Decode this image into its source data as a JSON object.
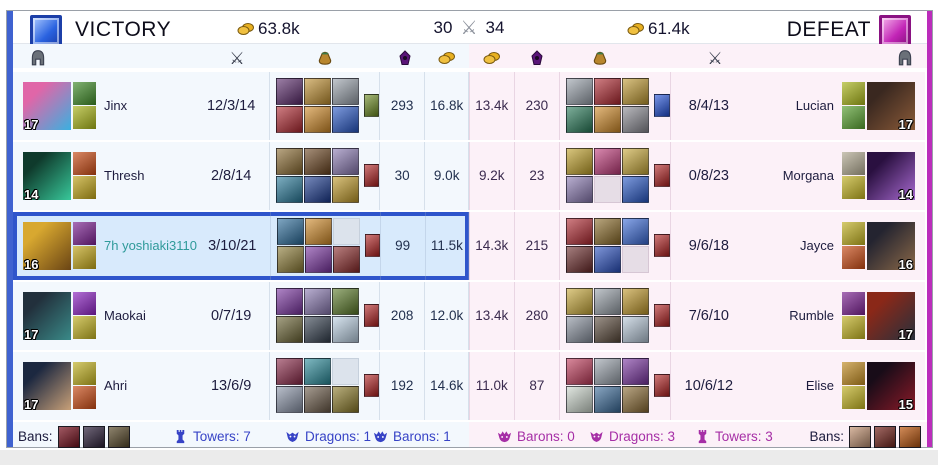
{
  "header": {
    "victory_label": "VICTORY",
    "defeat_label": "DEFEAT",
    "gold_left": "63.8k",
    "gold_right": "61.4k",
    "kills_left": "30",
    "kills_right": "34"
  },
  "column_icons": [
    "helmet",
    "crossed-swords",
    "item-bag",
    "minion",
    "gold-coins"
  ],
  "colors": {
    "blue_team_accent": "#3f62d0",
    "red_team_accent": "#bb2cbb",
    "highlight_border": "#2f55cb",
    "highlight_bg": "#d8eafc",
    "left_row_bg": "#f3f8fd",
    "right_row_bg": "#fcf1f8",
    "footer_blue_text": "#3743c6",
    "footer_purple_text": "#a62fa6",
    "highlight_name_teal": "#2f9a9a"
  },
  "players": {
    "left": [
      {
        "name": "Jinx",
        "level": "17",
        "kda": "12/3/14",
        "cs": "293",
        "gold": "16.8k",
        "portrait": [
          "#e066a8",
          "#3ab0e0"
        ],
        "spells": [
          "#3f8a28",
          "#a8b418"
        ],
        "items": [
          "#5a2a6a",
          "#c09030",
          "#9aa2ac",
          "#b02830",
          "#d08a28",
          "#2858c8"
        ],
        "trinket": "#6a8a20"
      },
      {
        "name": "Thresh",
        "level": "14",
        "kda": "2/8/14",
        "cs": "30",
        "gold": "9.0k",
        "portrait": [
          "#0f3a2c",
          "#38c89a"
        ],
        "spells": [
          "#c84a14",
          "#c0a418"
        ],
        "items": [
          "#8a6a30",
          "#6a4420",
          "#8a7ab2",
          "#287a9a",
          "#1a3a90",
          "#c09a28"
        ],
        "trinket": "#b02020"
      },
      {
        "name": "7h yoshiaki3110",
        "name_color": "#2f9a9a",
        "level": "16",
        "kda": "3/10/21",
        "cs": "99",
        "gold": "11.5k",
        "highlighted": true,
        "portrait": [
          "#d8a830",
          "#6a4414"
        ],
        "spells": [
          "#7a2090",
          "#c0a418"
        ],
        "items": [
          "#2a6a9a",
          "#d08a28",
          null,
          "#8a7a34",
          "#7a34a0",
          "#8a2a2a"
        ],
        "trinket": "#b02020"
      },
      {
        "name": "Maokai",
        "level": "17",
        "kda": "0/7/19",
        "cs": "208",
        "gold": "12.0k",
        "portrait": [
          "#22303c",
          "#3a8a88"
        ],
        "spells": [
          "#8a22c0",
          "#c0b020"
        ],
        "items": [
          "#7a34a0",
          "#8a7ab2",
          "#5a7a28",
          "#6a6434",
          "#34404e",
          "#bcd2e4"
        ],
        "trinket": "#b02020"
      },
      {
        "name": "Ahri",
        "level": "17",
        "kda": "13/6/9",
        "cs": "192",
        "gold": "14.6k",
        "portrait": [
          "#1c2840",
          "#c8a078"
        ],
        "spells": [
          "#c0b020",
          "#c84a14"
        ],
        "items": [
          "#8a2848",
          "#2a8a9a",
          null,
          "#8a94a8",
          "#6a5a48",
          "#8a7a28"
        ],
        "trinket": "#b02020"
      }
    ],
    "right": [
      {
        "name": "Lucian",
        "level": "17",
        "kda": "8/4/13",
        "cs": "230",
        "gold": "13.4k",
        "portrait": [
          "#3a2820",
          "#8a5a38"
        ],
        "spells": [
          "#a8b418",
          "#58a030"
        ],
        "items": [
          "#9aa2ac",
          "#b02830",
          "#c09a30",
          "#287a58",
          "#d08a28",
          "#8a8a92"
        ],
        "trinket": "#2050d8"
      },
      {
        "name": "Morgana",
        "level": "14",
        "kda": "0/8/23",
        "cs": "23",
        "gold": "9.2k",
        "portrait": [
          "#2a1040",
          "#a86ad0"
        ],
        "spells": [
          "#b0a890",
          "#c0b020"
        ],
        "items": [
          "#c0a028",
          "#c03a7a",
          "#c8a838",
          "#8a7ab2",
          null,
          "#2858c8"
        ],
        "trinket": "#b02020"
      },
      {
        "name": "Jayce",
        "level": "16",
        "kda": "9/6/18",
        "cs": "215",
        "gold": "14.3k",
        "portrait": [
          "#242430",
          "#8a6848"
        ],
        "spells": [
          "#c0b020",
          "#c84a14"
        ],
        "items": [
          "#b02830",
          "#8a6a28",
          "#3a6ad8",
          "#6a2a2a",
          "#2a50c0",
          null
        ],
        "trinket": "#b02020"
      },
      {
        "name": "Rumble",
        "level": "17",
        "kda": "7/6/10",
        "cs": "280",
        "gold": "13.4k",
        "portrait": [
          "#8a2818",
          "#28303c"
        ],
        "spells": [
          "#7a2090",
          "#c0b020"
        ],
        "items": [
          "#c8a838",
          "#98a0a8",
          "#c0982a",
          "#8a92a0",
          "#5a4a3a",
          "#b8c8d8"
        ],
        "trinket": "#b02020"
      },
      {
        "name": "Elise",
        "level": "15",
        "kda": "10/6/12",
        "cs": "87",
        "gold": "11.0k",
        "portrait": [
          "#180c18",
          "#8a1a28"
        ],
        "spells": [
          "#c08a20",
          "#c0b020"
        ],
        "items": [
          "#c03a5a",
          "#9aa2ac",
          "#7a34a0",
          "#ccd6cc",
          "#3a6a9a",
          "#8a6a34"
        ],
        "trinket": "#b02020"
      }
    ]
  },
  "footer": {
    "left": {
      "bans_label": "Bans:",
      "bans": [
        "#7a1220",
        "#332640",
        "#5f5030"
      ],
      "towers": "Towers: 7",
      "dragons": "Dragons: 1",
      "barons": "Barons: 1"
    },
    "right": {
      "bans_label": "Bans:",
      "bans": [
        "#c89a7a",
        "#7a2a22",
        "#c05a10"
      ],
      "barons": "Barons: 0",
      "dragons": "Dragons: 3",
      "towers": "Towers: 3"
    }
  }
}
